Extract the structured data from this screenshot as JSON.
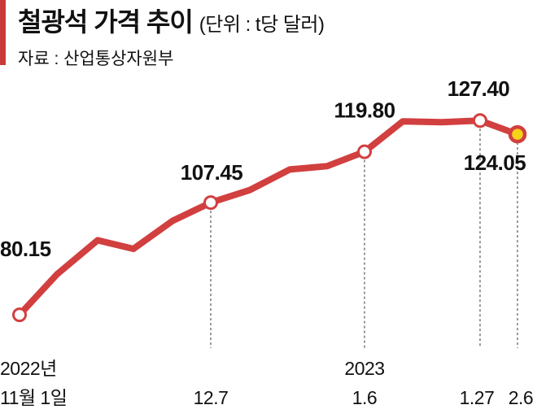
{
  "header": {
    "title": "철광석 가격 추이",
    "unit": "(단위 : t당 달러)",
    "source": "자료 : 산업통상자원부"
  },
  "colors": {
    "line": "#d23f3f",
    "accent": "#c8393a",
    "last_point": "#f6d21a"
  },
  "chart_data": {
    "type": "line",
    "title": "철광석 가격 추이",
    "ylabel": "t당 달러",
    "series": [
      {
        "values": [
          80.15,
          90.0,
          98.3,
          96.2,
          103.0,
          107.45,
          110.5,
          115.5,
          116.3,
          119.8,
          127.2,
          127.0,
          127.4,
          124.05
        ]
      }
    ],
    "x_tick_labels": [
      {
        "index": 0,
        "lines": [
          "2022년",
          "11월 1일"
        ]
      },
      {
        "index": 5,
        "lines": [
          "",
          "12.7"
        ]
      },
      {
        "index": 9,
        "lines": [
          "2023",
          "1.6"
        ]
      },
      {
        "index": 12,
        "lines": [
          "",
          "1.27"
        ]
      },
      {
        "index": 13,
        "lines": [
          "",
          "2.6"
        ]
      }
    ],
    "data_labels": [
      {
        "index": 0,
        "text": "80.15",
        "pos": "above"
      },
      {
        "index": 5,
        "text": "107.45",
        "pos": "above"
      },
      {
        "index": 9,
        "text": "119.80",
        "pos": "above"
      },
      {
        "index": 12,
        "text": "127.40",
        "pos": "above"
      },
      {
        "index": 13,
        "text": "124.05",
        "pos": "below"
      }
    ],
    "ylim": [
      78,
      131
    ],
    "grid": false,
    "legend": "none"
  }
}
